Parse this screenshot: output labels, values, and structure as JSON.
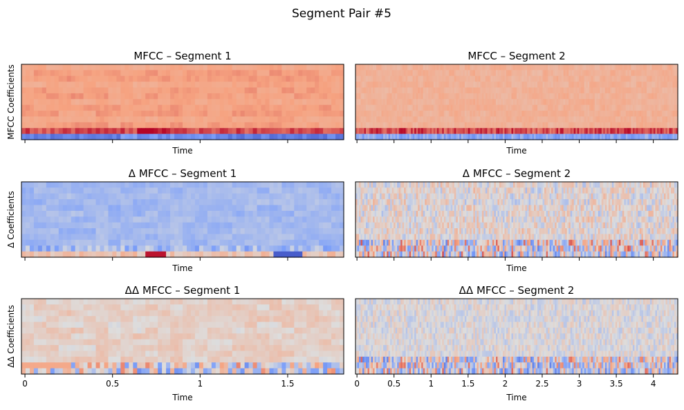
{
  "chart_data": {
    "title": "Segment Pair #5",
    "type": "heatmap",
    "colormap": "coolwarm",
    "panels": [
      {
        "id": "mfcc-seg1",
        "title": "MFCC – Segment 1",
        "feature": "mfcc",
        "segment": 1,
        "ylabel": "MFCC Coefficients",
        "xlabel": "Time",
        "xlim": [
          -0.02,
          1.82
        ],
        "xticks": [
          0,
          0.5,
          1,
          1.5
        ],
        "xtick_labels": [],
        "rows": 13,
        "cols": 78,
        "value_range": [
          -1,
          1
        ]
      },
      {
        "id": "mfcc-seg2",
        "title": "MFCC – Segment 2",
        "feature": "mfcc",
        "segment": 2,
        "ylabel": "",
        "xlabel": "Time",
        "xlim": [
          -0.02,
          4.33
        ],
        "xticks": [
          0,
          0.5,
          1,
          1.5,
          2,
          2.5,
          3,
          3.5,
          4
        ],
        "xtick_labels": [],
        "rows": 13,
        "cols": 186,
        "value_range": [
          -1,
          1
        ]
      },
      {
        "id": "delta-seg1",
        "title": "Δ MFCC – Segment 1",
        "feature": "delta",
        "segment": 1,
        "ylabel": "Δ Coefficients",
        "xlabel": "Time",
        "xlim": [
          -0.02,
          1.82
        ],
        "xticks": [
          0,
          0.5,
          1,
          1.5
        ],
        "xtick_labels": [],
        "rows": 13,
        "cols": 78,
        "value_range": [
          -1,
          1
        ]
      },
      {
        "id": "delta-seg2",
        "title": "Δ MFCC – Segment 2",
        "feature": "delta",
        "segment": 2,
        "ylabel": "",
        "xlabel": "Time",
        "xlim": [
          -0.02,
          4.33
        ],
        "xticks": [
          0,
          0.5,
          1,
          1.5,
          2,
          2.5,
          3,
          3.5,
          4
        ],
        "xtick_labels": [],
        "rows": 13,
        "cols": 186,
        "value_range": [
          -1,
          1
        ]
      },
      {
        "id": "deltadelta-seg1",
        "title": "ΔΔ MFCC – Segment 1",
        "feature": "deltadelta",
        "segment": 1,
        "ylabel": "ΔΔ Coefficients",
        "xlabel": "Time",
        "xlim": [
          -0.02,
          1.82
        ],
        "xticks": [
          0,
          0.5,
          1,
          1.5
        ],
        "xtick_labels": [
          "0",
          "0.5",
          "1",
          "1.5"
        ],
        "rows": 13,
        "cols": 78,
        "value_range": [
          -1,
          1
        ]
      },
      {
        "id": "deltadelta-seg2",
        "title": "ΔΔ MFCC – Segment 2",
        "feature": "deltadelta",
        "segment": 2,
        "ylabel": "",
        "xlabel": "Time",
        "xlim": [
          -0.02,
          4.33
        ],
        "xticks": [
          0,
          0.5,
          1,
          1.5,
          2,
          2.5,
          3,
          3.5,
          4
        ],
        "xtick_labels": [
          "0",
          "0.5",
          "1",
          "1.5",
          "2",
          "2.5",
          "3",
          "3.5",
          "4"
        ],
        "rows": 13,
        "cols": 186,
        "value_range": [
          -1,
          1
        ]
      }
    ]
  }
}
